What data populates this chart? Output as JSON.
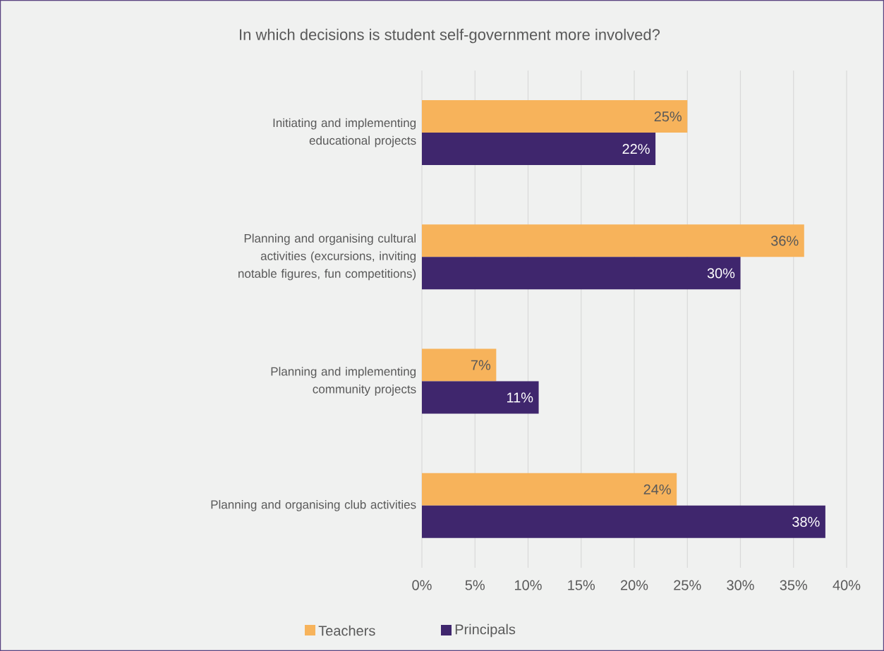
{
  "chart_data": {
    "type": "bar",
    "orientation": "horizontal",
    "title": "In which decisions is student self-government more involved?",
    "categories": [
      "Initiating and implementing educational projects",
      "Planning and organising cultural activities (excursions, inviting notable figures, fun competitions)",
      "Planning and implementing community projects",
      "Planning and organising club activities"
    ],
    "series": [
      {
        "name": "Teachers",
        "color": "#f7b35b",
        "values": [
          25,
          36,
          7,
          24
        ],
        "value_labels": [
          "25%",
          "36%",
          "7%",
          "24%"
        ]
      },
      {
        "name": "Principals",
        "color": "#3f266d",
        "values": [
          22,
          30,
          11,
          38
        ],
        "value_labels": [
          "22%",
          "30%",
          "11%",
          "38%"
        ]
      }
    ],
    "xlim": [
      0,
      40
    ],
    "xticks": [
      {
        "value": 0,
        "label": "0%"
      },
      {
        "value": 5,
        "label": "5%"
      },
      {
        "value": 10,
        "label": "10%"
      },
      {
        "value": 15,
        "label": "15%"
      },
      {
        "value": 20,
        "label": "20%"
      },
      {
        "value": 25,
        "label": "25%"
      },
      {
        "value": 30,
        "label": "30%"
      },
      {
        "value": 35,
        "label": "35%"
      },
      {
        "value": 40,
        "label": "40%"
      }
    ],
    "grid": "x",
    "legend": "bottom"
  }
}
